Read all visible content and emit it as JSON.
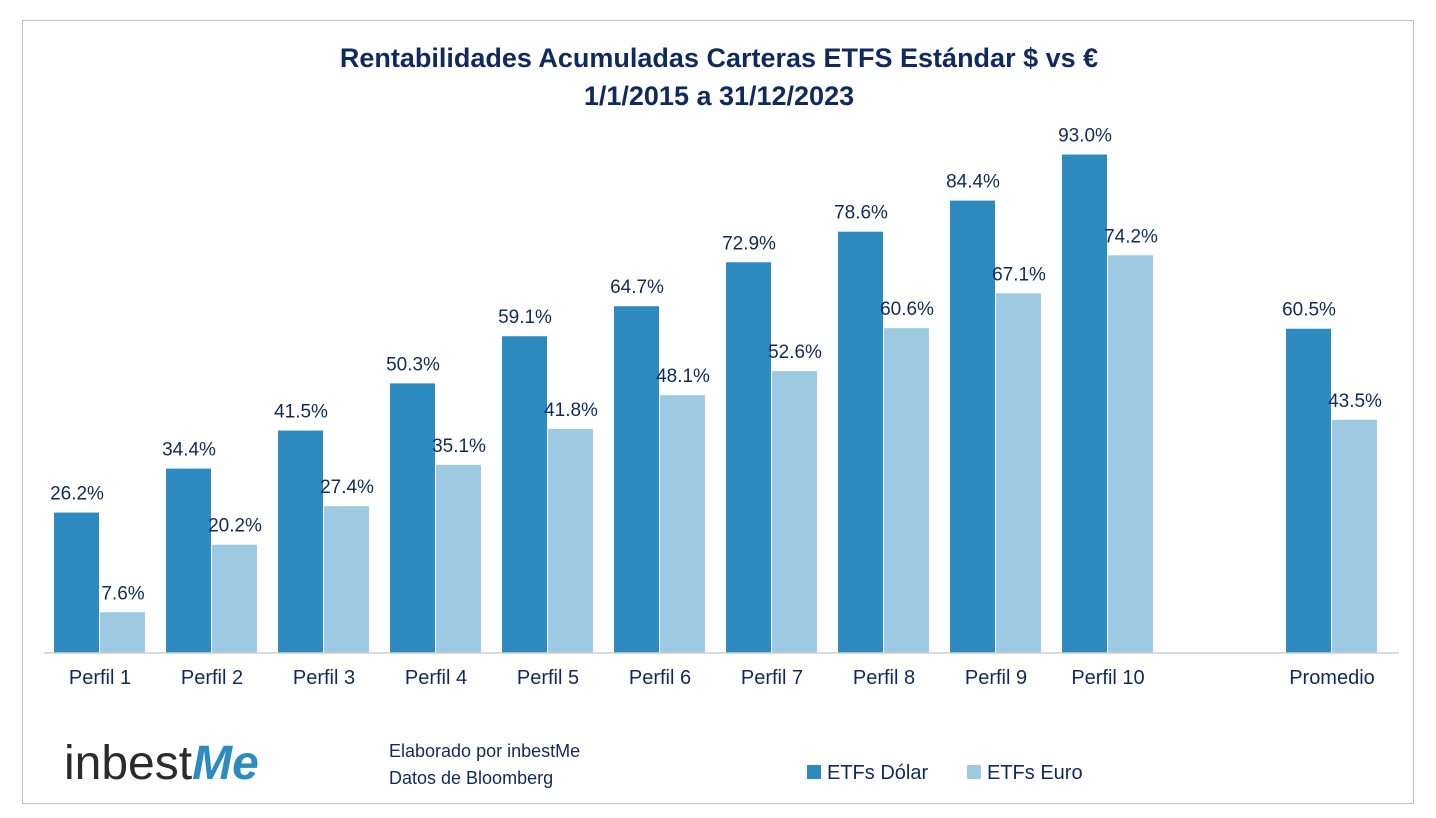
{
  "chart_data": {
    "type": "bar",
    "title": "Rentabilidades Acumuladas Carteras ETFS Estándar $ vs €",
    "subtitle": "1/1/2015 a 31/12/2023",
    "categories": [
      "Perfil 1",
      "Perfil 2",
      "Perfil 3",
      "Perfil 4",
      "Perfil 5",
      "Perfil 6",
      "Perfil 7",
      "Perfil 8",
      "Perfil 9",
      "Perfil 10",
      "",
      "Promedio"
    ],
    "series": [
      {
        "name": "ETFs Dólar",
        "color": "#2e8bc0",
        "values": [
          26.2,
          34.4,
          41.5,
          50.3,
          59.1,
          64.7,
          72.9,
          78.6,
          84.4,
          93.0,
          null,
          60.5
        ],
        "labels": [
          "26.2%",
          "34.4%",
          "41.5%",
          "50.3%",
          "59.1%",
          "64.7%",
          "72.9%",
          "78.6%",
          "84.4%",
          "93.0%",
          "",
          "60.5%"
        ]
      },
      {
        "name": "ETFs Euro",
        "color": "#9ecae1",
        "values": [
          7.6,
          20.2,
          27.4,
          35.1,
          41.8,
          48.1,
          52.6,
          60.6,
          67.1,
          74.2,
          null,
          43.5
        ],
        "labels": [
          "7.6%",
          "20.2%",
          "27.4%",
          "35.1%",
          "41.8%",
          "48.1%",
          "52.6%",
          "60.6%",
          "67.1%",
          "74.2%",
          "",
          "43.5%"
        ]
      }
    ],
    "ylim": [
      0,
      100
    ],
    "grid": false,
    "legend": "bottom-right"
  },
  "footer": {
    "logo": "inbestMe",
    "credit_lines": [
      "Elaborado por inbestMe",
      "Datos de Bloomberg"
    ]
  }
}
